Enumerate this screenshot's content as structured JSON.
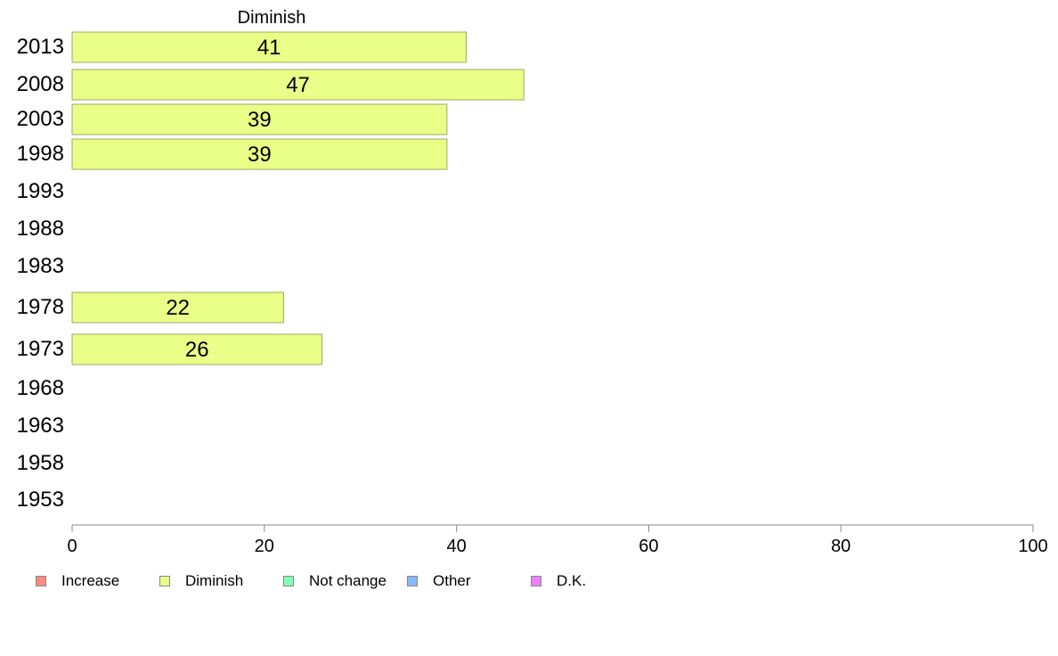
{
  "chart_data": {
    "type": "bar",
    "orientation": "horizontal",
    "title": "Diminish",
    "categories": [
      "2013",
      "2008",
      "2003",
      "1998",
      "1993",
      "1988",
      "1983",
      "1978",
      "1973",
      "1968",
      "1963",
      "1958",
      "1953"
    ],
    "series": [
      {
        "name": "Diminish",
        "values": [
          41,
          47,
          39,
          39,
          null,
          null,
          null,
          22,
          26,
          null,
          null,
          null,
          null
        ],
        "color": "#eaff88"
      }
    ],
    "xlim": [
      0,
      100
    ],
    "xticks": [
      0,
      20,
      40,
      60,
      80,
      100
    ],
    "xtick_labels": [
      "0",
      "20",
      "40",
      "60",
      "80",
      "100"
    ],
    "grid": false,
    "legend_position": "bottom",
    "legend": [
      {
        "label": "Increase",
        "color": "#ff8a80"
      },
      {
        "label": "Diminish",
        "color": "#eaff88"
      },
      {
        "label": "Not change",
        "color": "#80ffb8"
      },
      {
        "label": "Other",
        "color": "#88b8ff"
      },
      {
        "label": "D.K.",
        "color": "#ee80ff"
      }
    ]
  }
}
